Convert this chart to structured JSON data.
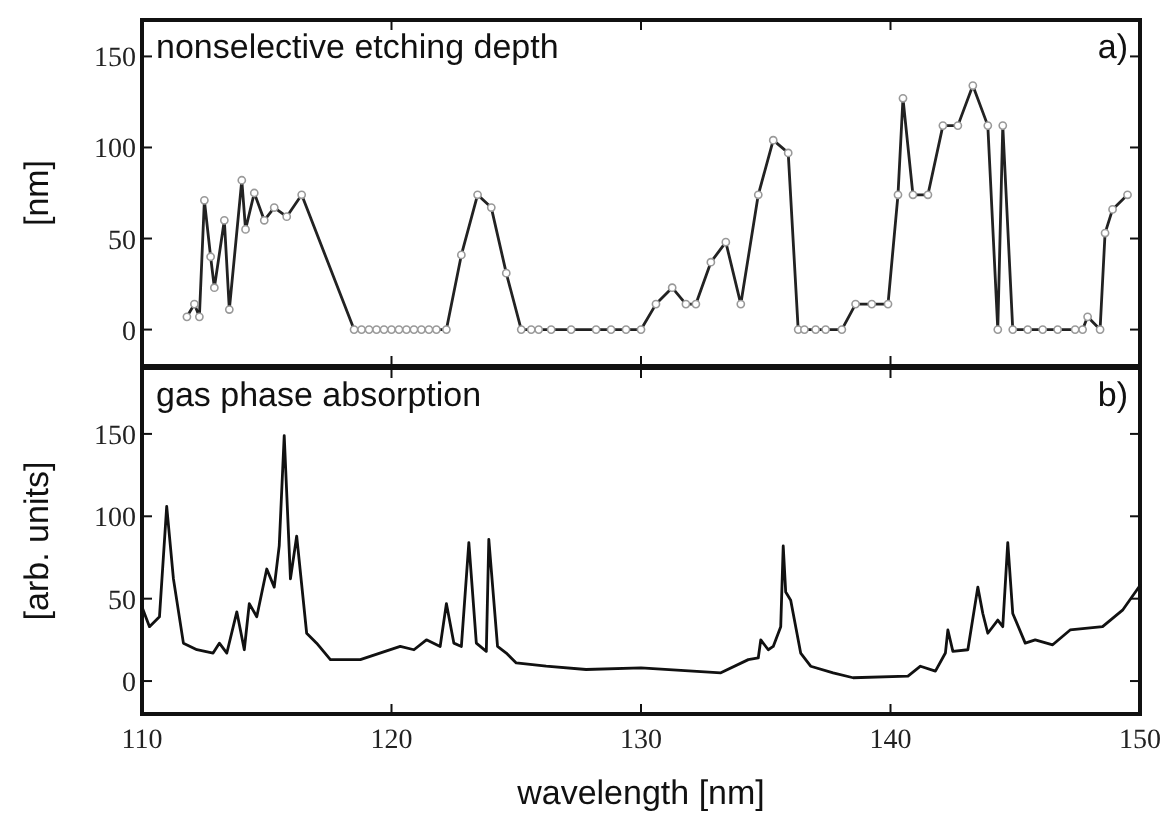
{
  "chart_data": [
    {
      "type": "line",
      "title": "nonselective etching depth",
      "ylabel": "[nm]",
      "annotations": [
        "a)"
      ],
      "marker": "circle",
      "tick_labels": "y",
      "xlim": [
        110,
        150
      ],
      "xticks": [
        110,
        120,
        130,
        140,
        150
      ],
      "ylim": [
        -20,
        170
      ],
      "yticks": [
        0,
        50,
        100,
        150
      ],
      "series": [
        {
          "color": "#222222",
          "x": [
            111.8,
            112.1,
            112.3,
            112.5,
            112.75,
            112.9,
            113.3,
            113.5,
            114.0,
            114.15,
            114.5,
            114.9,
            115.3,
            115.8,
            116.4,
            118.5,
            118.8,
            119.1,
            119.4,
            119.7,
            120.0,
            120.3,
            120.6,
            120.9,
            121.2,
            121.5,
            121.8,
            122.2,
            122.8,
            123.45,
            124.0,
            124.6,
            125.2,
            125.6,
            125.9,
            126.4,
            127.2,
            128.2,
            128.8,
            129.4,
            130.0,
            130.6,
            131.25,
            131.8,
            132.2,
            132.8,
            133.4,
            134.0,
            134.7,
            135.3,
            135.9,
            136.3,
            136.55,
            137.0,
            137.4,
            138.05,
            138.6,
            139.25,
            139.9,
            140.3,
            140.5,
            140.9,
            141.5,
            142.1,
            142.7,
            143.3,
            143.9,
            144.3,
            144.5,
            144.9,
            145.5,
            146.1,
            146.7,
            147.4,
            147.7,
            147.9,
            148.4,
            148.6,
            148.9,
            149.5
          ],
          "values": [
            7,
            14,
            7,
            71,
            40,
            23,
            60,
            11,
            82,
            55,
            75,
            60,
            67,
            62,
            74,
            0,
            0,
            0,
            0,
            0,
            0,
            0,
            0,
            0,
            0,
            0,
            0,
            0,
            41,
            74,
            67,
            31,
            0,
            0,
            0,
            0,
            0,
            0,
            0,
            0,
            0,
            14,
            23,
            14,
            14,
            37,
            48,
            14,
            74,
            104,
            97,
            0,
            0,
            0,
            0,
            0,
            14,
            14,
            14,
            74,
            127,
            74,
            74,
            112,
            112,
            134,
            112,
            0,
            112,
            0,
            0,
            0,
            0,
            0,
            0,
            7,
            0,
            53,
            66,
            74
          ]
        }
      ]
    },
    {
      "type": "line",
      "title": "gas phase absorption",
      "ylabel": "[arb. units]",
      "xlabel": "wavelength [nm]",
      "annotations": [
        "b)"
      ],
      "xlim": [
        110,
        150
      ],
      "xticks": [
        110,
        120,
        130,
        140,
        150
      ],
      "ylim": [
        -20,
        190
      ],
      "yticks": [
        0,
        50,
        100,
        150
      ],
      "series": [
        {
          "color": "#111111",
          "x": [
            110,
            110.3,
            110.7,
            110.99,
            111.26,
            111.66,
            112.2,
            112.85,
            113.1,
            113.4,
            113.8,
            114.1,
            114.3,
            114.6,
            115.0,
            115.3,
            115.5,
            115.7,
            115.95,
            116.2,
            116.6,
            117.0,
            117.55,
            118.75,
            120.35,
            120.9,
            121.4,
            121.95,
            122.2,
            122.5,
            122.8,
            123.1,
            123.4,
            123.8,
            123.9,
            124.25,
            124.6,
            125.0,
            126.2,
            127.8,
            130.0,
            133.2,
            134.3,
            134.7,
            134.8,
            135.1,
            135.3,
            135.6,
            135.7,
            135.8,
            136.0,
            136.4,
            136.8,
            137.7,
            138.5,
            140.7,
            141.2,
            141.8,
            142.2,
            142.3,
            142.5,
            143.1,
            143.5,
            143.7,
            143.9,
            144.3,
            144.5,
            144.7,
            144.9,
            145.4,
            145.8,
            146.5,
            147.2,
            148.5,
            149.3,
            150
          ],
          "values": [
            45,
            33,
            39,
            106,
            62,
            23,
            19,
            17,
            23,
            17,
            42,
            19,
            47,
            39,
            68,
            57,
            82,
            149,
            62,
            88,
            29,
            23,
            13,
            13,
            21,
            19,
            25,
            21,
            47,
            23,
            21,
            84,
            23,
            18,
            86,
            21,
            17,
            11,
            9,
            7,
            8,
            5,
            13,
            14,
            25,
            19,
            21,
            33,
            82,
            54,
            49,
            17,
            9,
            5,
            2,
            3,
            9,
            6,
            17,
            31,
            18,
            19,
            57,
            41,
            29,
            37,
            33,
            84,
            41,
            23,
            25,
            22,
            31,
            33,
            43,
            58
          ]
        }
      ]
    }
  ]
}
